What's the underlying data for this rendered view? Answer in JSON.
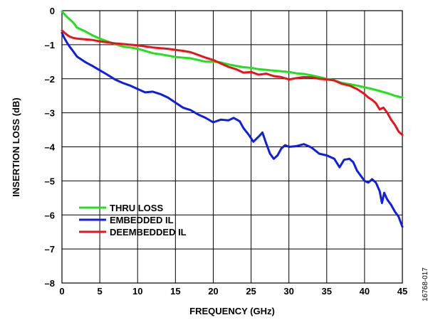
{
  "chart_data": {
    "type": "line",
    "title": "",
    "xlabel": "FREQUENCY (GHz)",
    "ylabel": "INSERTION LOSS (dB)",
    "xlim": [
      0,
      45
    ],
    "ylim": [
      -8,
      0
    ],
    "x_ticks": [
      0,
      5,
      10,
      15,
      20,
      25,
      30,
      35,
      40,
      45
    ],
    "y_ticks": [
      0,
      -1,
      -2,
      -3,
      -4,
      -5,
      -6,
      -7,
      -8
    ],
    "x_tick_labels": [
      "0",
      "5",
      "10",
      "15",
      "20",
      "25",
      "30",
      "35",
      "40",
      "45"
    ],
    "y_tick_labels": [
      "0",
      "–1",
      "–2",
      "–3",
      "–4",
      "–5",
      "–6",
      "–7",
      "–8"
    ],
    "grid": true,
    "legend_position": "lower-left",
    "figure_id": "16768-017",
    "series": [
      {
        "name": "THRU LOSS",
        "color": "#22e01c",
        "x": [
          0,
          0.5,
          1,
          1.5,
          2,
          3,
          4,
          5,
          6,
          7,
          8,
          9,
          10,
          11,
          12,
          13,
          14,
          15,
          16,
          17,
          18,
          19,
          20,
          21,
          22,
          23,
          24,
          25,
          26,
          27,
          28,
          29,
          30,
          31,
          32,
          33,
          34,
          35,
          36,
          37,
          38,
          39,
          40,
          41,
          42,
          43,
          44,
          45
        ],
        "values": [
          -0.02,
          -0.15,
          -0.25,
          -0.35,
          -0.5,
          -0.6,
          -0.72,
          -0.82,
          -0.9,
          -0.98,
          -1.05,
          -1.08,
          -1.12,
          -1.18,
          -1.25,
          -1.28,
          -1.32,
          -1.36,
          -1.38,
          -1.4,
          -1.45,
          -1.5,
          -1.5,
          -1.52,
          -1.58,
          -1.62,
          -1.66,
          -1.68,
          -1.72,
          -1.74,
          -1.76,
          -1.78,
          -1.8,
          -1.84,
          -1.86,
          -1.9,
          -1.95,
          -2.0,
          -2.05,
          -2.12,
          -2.16,
          -2.2,
          -2.25,
          -2.3,
          -2.36,
          -2.42,
          -2.5,
          -2.55
        ]
      },
      {
        "name": "EMBEDDED IL",
        "color": "#0f1ee0",
        "x": [
          0,
          0.3,
          0.7,
          1,
          1.5,
          2,
          3,
          4,
          5,
          6,
          7,
          8,
          9,
          10,
          11,
          12,
          13,
          14,
          15,
          16,
          17,
          18,
          19,
          20,
          21,
          22,
          22.7,
          23.5,
          24,
          24.7,
          25.3,
          26,
          26.5,
          27,
          27.5,
          28,
          28.5,
          29,
          29.5,
          30,
          31,
          32,
          33,
          34,
          35,
          36,
          36.7,
          37.3,
          38,
          38.5,
          39,
          39.5,
          40,
          40.5,
          41,
          41.5,
          42,
          42.3,
          42.6,
          43,
          43.5,
          44,
          44.5,
          45
        ],
        "values": [
          -0.65,
          -0.8,
          -0.95,
          -1.05,
          -1.2,
          -1.35,
          -1.5,
          -1.62,
          -1.75,
          -1.88,
          -2.02,
          -2.12,
          -2.2,
          -2.3,
          -2.4,
          -2.38,
          -2.45,
          -2.55,
          -2.7,
          -2.85,
          -2.92,
          -3.05,
          -3.15,
          -3.28,
          -3.2,
          -3.22,
          -3.15,
          -3.25,
          -3.45,
          -3.65,
          -3.85,
          -3.7,
          -3.58,
          -3.9,
          -4.2,
          -4.35,
          -4.25,
          -4.05,
          -3.95,
          -4.0,
          -3.98,
          -3.92,
          -4.02,
          -4.2,
          -4.25,
          -4.35,
          -4.6,
          -4.38,
          -4.35,
          -4.45,
          -4.7,
          -4.85,
          -5.0,
          -5.05,
          -4.95,
          -5.05,
          -5.3,
          -5.65,
          -5.35,
          -5.55,
          -5.7,
          -5.9,
          -6.05,
          -6.35
        ]
      },
      {
        "name": "DEEMBEDDED IL",
        "color": "#e8141c",
        "x": [
          0,
          0.5,
          1,
          1.5,
          2,
          3,
          4,
          5,
          6,
          7,
          8,
          9,
          10,
          11,
          12,
          13,
          14,
          15,
          16,
          17,
          18,
          19,
          20,
          21,
          22,
          23,
          24,
          25,
          26,
          27,
          28,
          29,
          30,
          31,
          32,
          33,
          34,
          35,
          36,
          37,
          38,
          39,
          40,
          40.5,
          41,
          41.5,
          42,
          42.5,
          43,
          43.5,
          44,
          44.5,
          45
        ],
        "values": [
          -0.58,
          -0.68,
          -0.76,
          -0.8,
          -0.82,
          -0.84,
          -0.86,
          -0.9,
          -0.93,
          -0.96,
          -0.98,
          -1.0,
          -1.02,
          -1.05,
          -1.08,
          -1.1,
          -1.12,
          -1.15,
          -1.18,
          -1.22,
          -1.3,
          -1.38,
          -1.45,
          -1.55,
          -1.65,
          -1.72,
          -1.82,
          -1.8,
          -1.88,
          -1.85,
          -1.92,
          -1.95,
          -2.02,
          -1.98,
          -1.95,
          -1.96,
          -2.0,
          -2.02,
          -2.05,
          -2.15,
          -2.2,
          -2.3,
          -2.45,
          -2.55,
          -2.62,
          -2.72,
          -2.9,
          -2.85,
          -3.0,
          -3.2,
          -3.35,
          -3.55,
          -3.65
        ]
      }
    ]
  }
}
